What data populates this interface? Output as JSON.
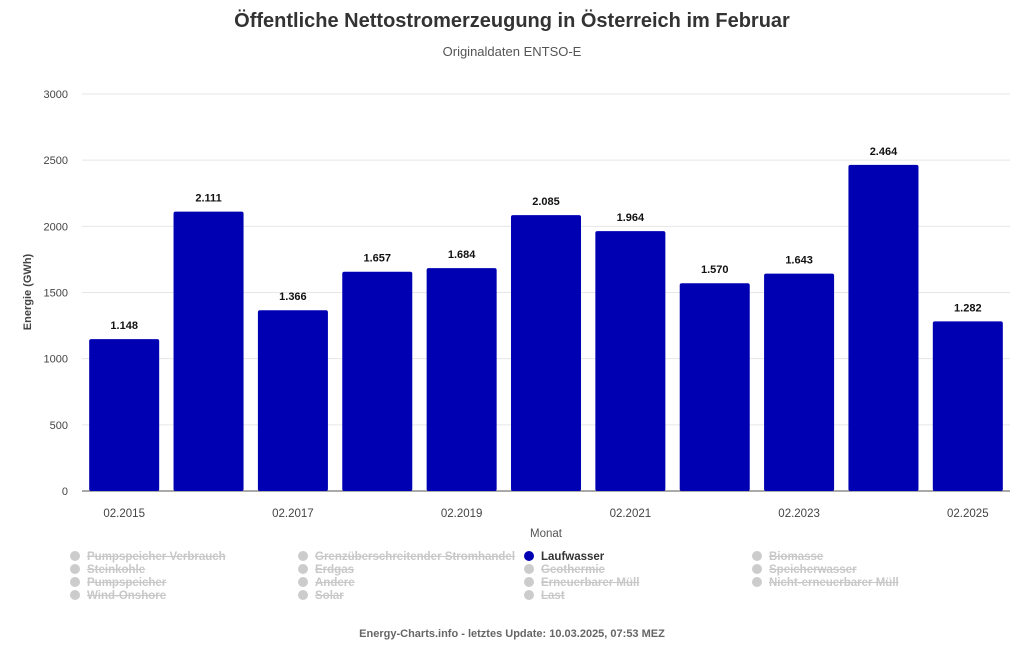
{
  "header": {
    "title": "Öffentliche Nettostromerzeugung in Österreich im Februar",
    "subtitle": "Originaldaten ENTSO-E"
  },
  "footer": {
    "text": "Energy-Charts.info - letztes Update: 10.03.2025, 07:53 MEZ"
  },
  "legend": {
    "items": [
      {
        "label": "Pumpspeicher Verbrauch",
        "active": false
      },
      {
        "label": "Steinkohle",
        "active": false
      },
      {
        "label": "Pumpspeicher",
        "active": false
      },
      {
        "label": "Wind-Onshore",
        "active": false
      },
      {
        "label": "Grenzüberschreitender Stromhandel",
        "active": false
      },
      {
        "label": "Erdgas",
        "active": false
      },
      {
        "label": "Andere",
        "active": false
      },
      {
        "label": "Solar",
        "active": false
      },
      {
        "label": "Laufwasser",
        "active": true
      },
      {
        "label": "Geothermie",
        "active": false
      },
      {
        "label": "Erneuerbarer Müll",
        "active": false
      },
      {
        "label": "Last",
        "active": false
      },
      {
        "label": "Biomasse",
        "active": false
      },
      {
        "label": "Speicherwasser",
        "active": false
      },
      {
        "label": "Nicht-erneuerbarer Müll",
        "active": false
      }
    ]
  },
  "chart_data": {
    "type": "bar",
    "title": "Öffentliche Nettostromerzeugung in Österreich im Februar",
    "subtitle": "Originaldaten ENTSO-E",
    "xlabel": "Monat",
    "ylabel": "Energie (GWh)",
    "ylim": [
      0,
      3000
    ],
    "yticks": [
      0,
      500,
      1000,
      1500,
      2000,
      2500,
      3000
    ],
    "grid": true,
    "bar_color": "#0000b3",
    "categories": [
      "02.2015",
      "02.2016",
      "02.2017",
      "02.2018",
      "02.2019",
      "02.2020",
      "02.2021",
      "02.2022",
      "02.2023",
      "02.2024",
      "02.2025"
    ],
    "x_tick_labels": [
      "02.2015",
      "",
      "02.2017",
      "",
      "02.2019",
      "",
      "02.2021",
      "",
      "02.2023",
      "",
      "02.2025"
    ],
    "series": [
      {
        "name": "Laufwasser",
        "values": [
          1148,
          2111,
          1366,
          1657,
          1684,
          2085,
          1964,
          1570,
          1643,
          2464,
          1282
        ],
        "data_labels": [
          "1.148",
          "2.111",
          "1.366",
          "1.657",
          "1.684",
          "2.085",
          "1.964",
          "1.570",
          "1.643",
          "2.464",
          "1.282"
        ]
      }
    ]
  }
}
